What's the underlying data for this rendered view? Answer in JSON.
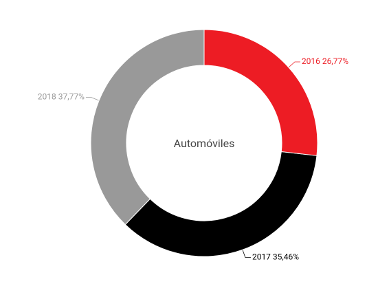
{
  "chart_data": {
    "type": "donut",
    "title": "Automóviles",
    "categories": [
      "2016",
      "2017",
      "2018"
    ],
    "values": [
      26.77,
      35.46,
      37.77
    ],
    "value_labels": [
      "26,77%",
      "35,46%",
      "37,77%"
    ],
    "colors": [
      "#ed1c24",
      "#000000",
      "#999999"
    ],
    "label_colors": [
      "#ed1c24",
      "#000000",
      "#999999"
    ]
  }
}
